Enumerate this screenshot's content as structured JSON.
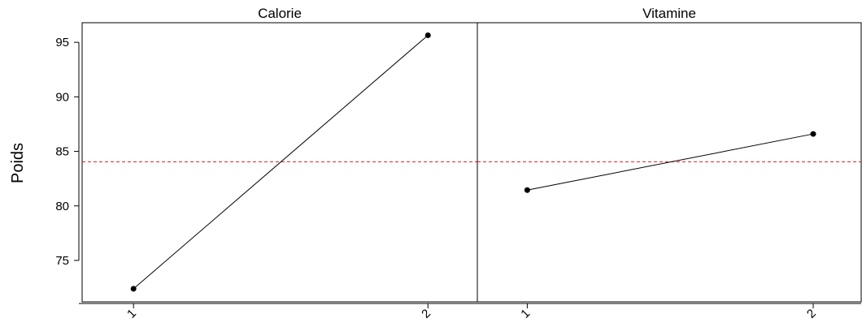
{
  "chart_data": {
    "type": "line",
    "title": "",
    "ylabel": "Poids",
    "xlabel": "",
    "ylim": [
      71.2,
      96.8
    ],
    "y_ticks": [
      75,
      80,
      85,
      90,
      95
    ],
    "y_tick_labels": [
      "75",
      "80",
      "85",
      "90",
      "95"
    ],
    "reference_line": {
      "value": 84.05,
      "color": "#e41a1c",
      "style": "dashed"
    },
    "grid": false,
    "panels": [
      {
        "title": "Calorie",
        "categories": [
          "1",
          "2"
        ],
        "values": [
          72.4,
          95.65
        ]
      },
      {
        "title": "Vitamine",
        "categories": [
          "1",
          "2"
        ],
        "values": [
          81.45,
          86.6
        ]
      }
    ],
    "colors": {
      "line": "#000000",
      "point": "#000000",
      "axis": "#000000"
    }
  }
}
